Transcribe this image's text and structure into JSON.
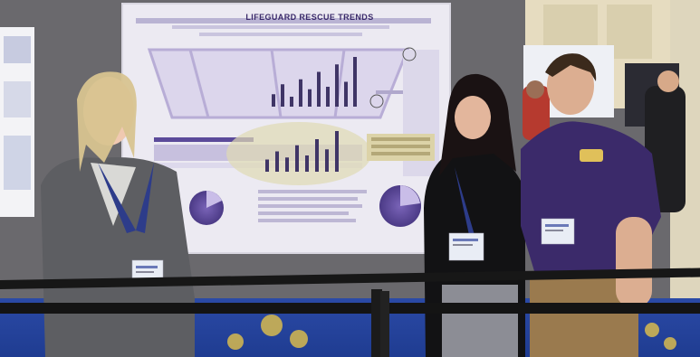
{
  "poster": {
    "title": "LIFEGUARD RESCUE TRENDS",
    "chart_bar_heights": [
      0.25,
      0.45,
      0.2,
      0.55,
      0.35,
      0.7,
      0.4,
      0.85,
      0.5,
      1.0
    ],
    "small_bar_heights": [
      0.3,
      0.5,
      0.35,
      0.65,
      0.4,
      0.8,
      0.55,
      1.0
    ]
  },
  "colors": {
    "wall": "#6b6a6e",
    "poster_bg": "#eceaf2",
    "poster_purple": "#5b4a9a",
    "carpet": "#2f4fa8",
    "stanchion": "#1b1b1b",
    "shirt_purple": "#3b2a6a"
  }
}
